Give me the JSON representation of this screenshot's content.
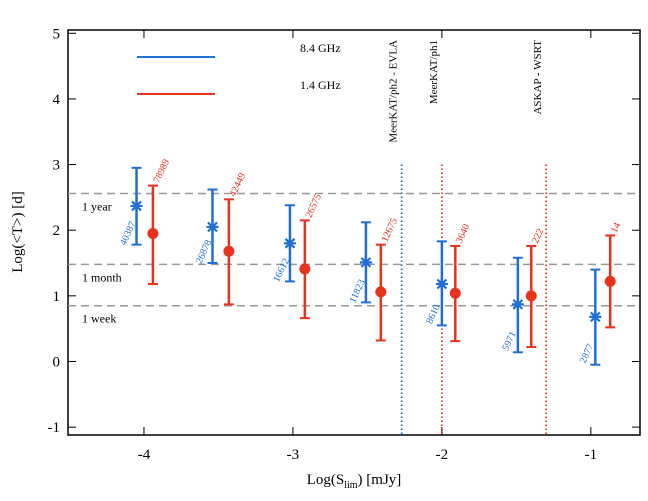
{
  "chart_data": {
    "type": "errorbar",
    "xlabel_parts": [
      "Log(S",
      "lim",
      ") [mJy]"
    ],
    "ylabel": "Log(<T>) [d]",
    "xlim": [
      -4.51,
      -0.67
    ],
    "ylim": [
      -1.12,
      5.05
    ],
    "xticks": [
      -4,
      -3,
      -2,
      -1
    ],
    "yticks": [
      -1,
      0,
      1,
      2,
      3,
      4,
      5
    ],
    "legend": "upper left",
    "series": [
      {
        "name": "8.4 GHz",
        "color": "#1f6fd6",
        "marker": "asterisk",
        "x": [
          -4.05,
          -3.54,
          -3.02,
          -2.51,
          -2.0,
          -1.49,
          -0.97
        ],
        "values": [
          2.37,
          2.05,
          1.8,
          1.51,
          1.18,
          0.87,
          0.68
        ],
        "upper": [
          2.95,
          2.62,
          2.38,
          2.12,
          1.83,
          1.58,
          1.4
        ],
        "lower": [
          1.78,
          1.5,
          1.22,
          0.9,
          0.55,
          0.14,
          -0.05
        ],
        "point_labels": [
          "40387",
          "26878",
          "16612",
          "11823",
          "8610",
          "5971",
          "2877"
        ]
      },
      {
        "name": "1.4 GHz",
        "color": "#e8321c",
        "marker": "circle",
        "x": [
          -3.94,
          -3.43,
          -2.92,
          -2.41,
          -1.91,
          -1.4,
          -0.87
        ],
        "values": [
          1.95,
          1.68,
          1.41,
          1.06,
          1.04,
          1.0,
          1.22
        ],
        "upper": [
          2.68,
          2.47,
          2.15,
          1.78,
          1.76,
          1.76,
          1.92
        ],
        "lower": [
          1.18,
          0.87,
          0.66,
          0.32,
          0.31,
          0.22,
          0.52
        ],
        "point_labels": [
          "78989",
          "42449",
          "26575",
          "12675",
          "3640",
          "222",
          "14"
        ]
      }
    ],
    "hlines": [
      {
        "y": 2.56,
        "label": "1 year"
      },
      {
        "y": 1.48,
        "label": "1 month"
      },
      {
        "y": 0.85,
        "label": "1 week"
      }
    ],
    "vlines": [
      {
        "x": -2.27,
        "color": "#1f6fd6",
        "label": "MeerKAT/ph2 - EVLA"
      },
      {
        "x": -2.0,
        "color": "#e8321c",
        "label": "MeerKAT/ph1"
      },
      {
        "x": -1.3,
        "color": "#e8321c",
        "label": "ASKAP - WSRT"
      }
    ]
  }
}
